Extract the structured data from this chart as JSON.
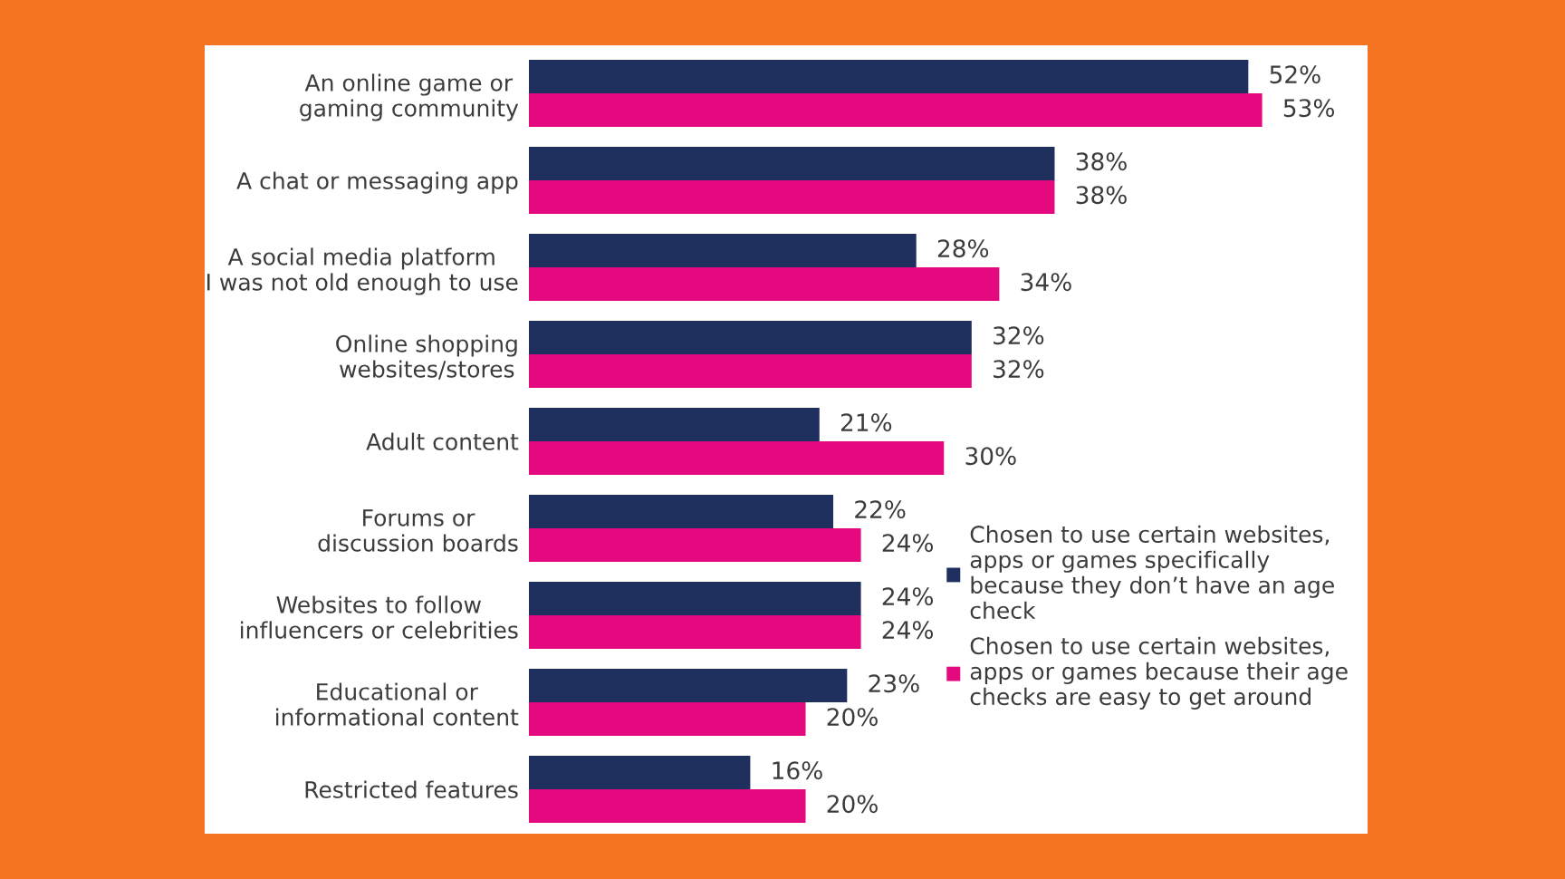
{
  "chart_data": {
    "type": "bar",
    "orientation": "horizontal",
    "categories": [
      "An online game or\ngaming community",
      "A chat or messaging app",
      "A social media platform\nI was not old enough to use",
      "Online shopping\nwebsites/stores",
      "Adult content",
      "Forums or\ndiscussion boards",
      "Websites to follow\ninfluencers or celebrities",
      "Educational or\ninformational content",
      "Restricted features"
    ],
    "series": [
      {
        "name": "Chosen to use certain websites,\napps or games specifically\nbecause they don’t have an age\ncheck",
        "color": "#1f305e",
        "values": [
          52,
          38,
          28,
          32,
          21,
          22,
          24,
          23,
          16
        ],
        "value_labels": [
          "52%",
          "38%",
          "28%",
          "32%",
          "21%",
          "22%",
          "24%",
          "23%",
          "16%"
        ]
      },
      {
        "name": "Chosen to use certain websites,\napps or games because their age\nchecks are easy to get around",
        "color": "#e5097f",
        "values": [
          53,
          38,
          34,
          32,
          30,
          24,
          24,
          20,
          20
        ],
        "value_labels": [
          "53%",
          "38%",
          "34%",
          "32%",
          "30%",
          "24%",
          "24%",
          "20%",
          "20%"
        ]
      }
    ],
    "legend": "lower right"
  }
}
